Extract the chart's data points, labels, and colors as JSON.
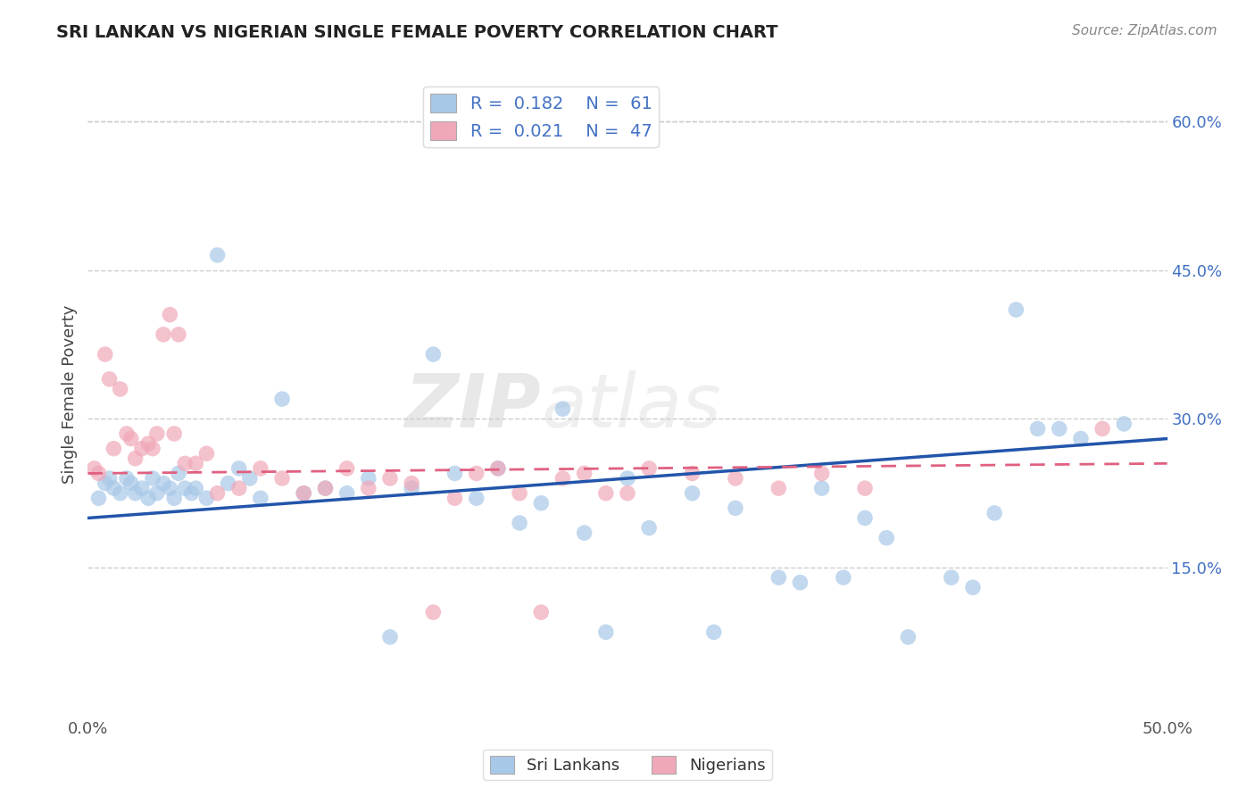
{
  "title": "SRI LANKAN VS NIGERIAN SINGLE FEMALE POVERTY CORRELATION CHART",
  "source_text": "Source: ZipAtlas.com",
  "ylabel": "Single Female Poverty",
  "xlim": [
    0.0,
    50.0
  ],
  "ylim": [
    0.0,
    65.0
  ],
  "yticks": [
    15.0,
    30.0,
    45.0,
    60.0
  ],
  "sri_lankan_R": 0.182,
  "sri_lankan_N": 61,
  "nigerian_R": 0.021,
  "nigerian_N": 47,
  "sri_lankan_color": "#a8c8e8",
  "nigerian_color": "#f0a8b8",
  "sri_lankan_line_color": "#2255aa",
  "nigerian_line_color": "#e06080",
  "legend_R_N_color": "#4472c4",
  "background_color": "#ffffff",
  "watermark_text": "ZIPatlas",
  "sri_lankans_x": [
    0.5,
    0.8,
    1.0,
    1.2,
    1.5,
    1.8,
    2.0,
    2.2,
    2.5,
    2.8,
    3.0,
    3.2,
    3.5,
    3.8,
    4.0,
    4.2,
    4.5,
    4.8,
    5.0,
    5.5,
    6.0,
    6.5,
    7.0,
    7.5,
    8.0,
    9.0,
    10.0,
    11.0,
    12.0,
    13.0,
    14.0,
    15.0,
    16.0,
    17.0,
    18.0,
    19.0,
    20.0,
    21.0,
    22.0,
    23.0,
    24.0,
    25.0,
    26.0,
    28.0,
    29.0,
    30.0,
    32.0,
    33.0,
    34.0,
    35.0,
    36.0,
    37.0,
    38.0,
    40.0,
    41.0,
    42.0,
    43.0,
    44.0,
    45.0,
    46.0,
    48.0
  ],
  "sri_lankans_y": [
    22.0,
    23.5,
    24.0,
    23.0,
    22.5,
    24.0,
    23.5,
    22.5,
    23.0,
    22.0,
    24.0,
    22.5,
    23.5,
    23.0,
    22.0,
    24.5,
    23.0,
    22.5,
    23.0,
    22.0,
    46.5,
    23.5,
    25.0,
    24.0,
    22.0,
    32.0,
    22.5,
    23.0,
    22.5,
    24.0,
    8.0,
    23.0,
    36.5,
    24.5,
    22.0,
    25.0,
    19.5,
    21.5,
    31.0,
    18.5,
    8.5,
    24.0,
    19.0,
    22.5,
    8.5,
    21.0,
    14.0,
    13.5,
    23.0,
    14.0,
    20.0,
    18.0,
    8.0,
    14.0,
    13.0,
    20.5,
    41.0,
    29.0,
    29.0,
    28.0,
    29.5
  ],
  "nigerians_x": [
    0.3,
    0.5,
    0.8,
    1.0,
    1.2,
    1.5,
    1.8,
    2.0,
    2.2,
    2.5,
    2.8,
    3.0,
    3.2,
    3.5,
    3.8,
    4.0,
    4.2,
    4.5,
    5.0,
    5.5,
    6.0,
    7.0,
    8.0,
    9.0,
    10.0,
    11.0,
    12.0,
    13.0,
    14.0,
    15.0,
    16.0,
    17.0,
    18.0,
    19.0,
    20.0,
    21.0,
    22.0,
    23.0,
    24.0,
    25.0,
    26.0,
    28.0,
    30.0,
    32.0,
    34.0,
    36.0,
    47.0
  ],
  "nigerians_y": [
    25.0,
    24.5,
    36.5,
    34.0,
    27.0,
    33.0,
    28.5,
    28.0,
    26.0,
    27.0,
    27.5,
    27.0,
    28.5,
    38.5,
    40.5,
    28.5,
    38.5,
    25.5,
    25.5,
    26.5,
    22.5,
    23.0,
    25.0,
    24.0,
    22.5,
    23.0,
    25.0,
    23.0,
    24.0,
    23.5,
    10.5,
    22.0,
    24.5,
    25.0,
    22.5,
    10.5,
    24.0,
    24.5,
    22.5,
    22.5,
    25.0,
    24.5,
    24.0,
    23.0,
    24.5,
    23.0,
    29.0
  ]
}
